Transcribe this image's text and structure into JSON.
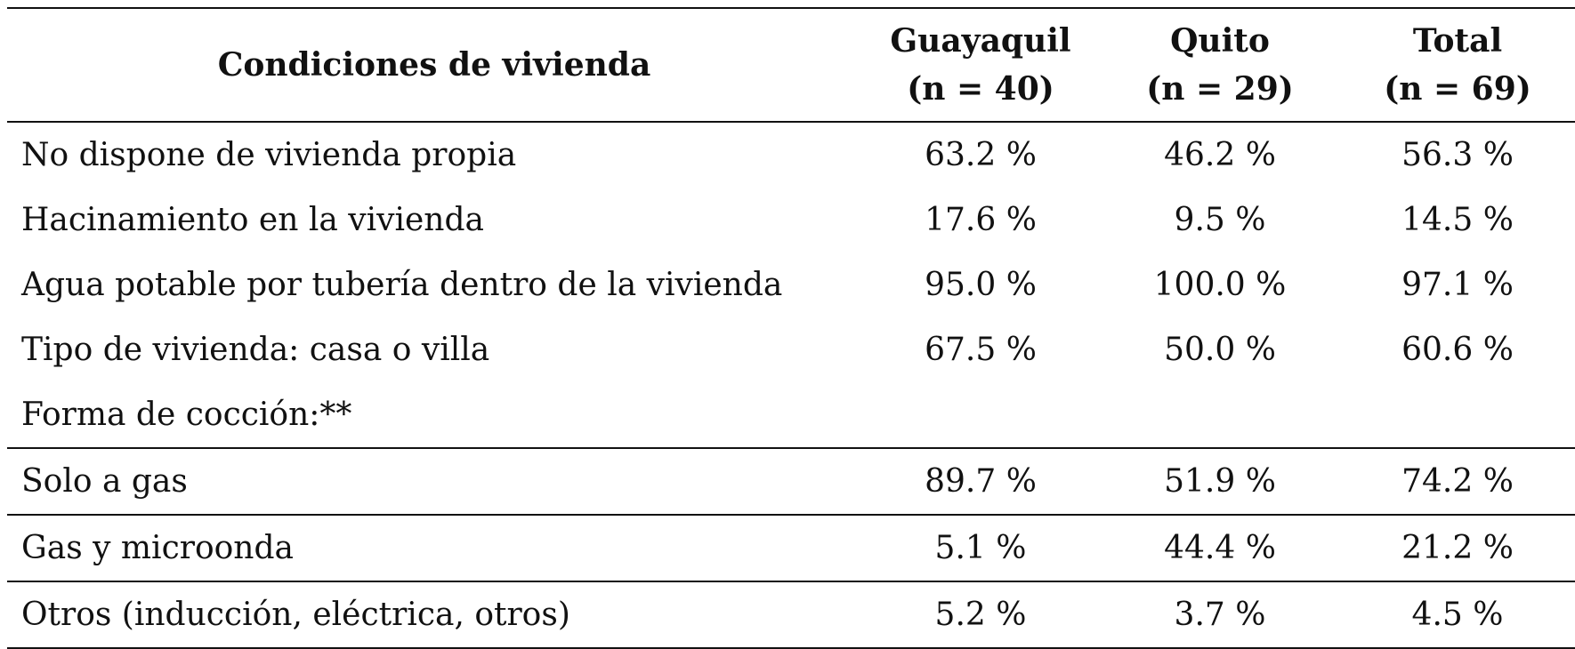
{
  "table": {
    "header": {
      "col1": "Condiciones de vivienda",
      "col2": {
        "line1": "Guayaquil",
        "line2": "(n = 40)"
      },
      "col3": {
        "line1": "Quito",
        "line2": "(n = 29)"
      },
      "col4": {
        "line1": "Total",
        "line2": "(n = 69)"
      }
    },
    "rows": [
      {
        "label": "No dispone de vivienda propia",
        "guayaquil": "63.2 %",
        "quito": "46.2 %",
        "total": "56.3 %"
      },
      {
        "label": "Hacinamiento en la vivienda",
        "guayaquil": "17.6 %",
        "quito": "9.5 %",
        "total": "14.5 %"
      },
      {
        "label": "Agua potable por tubería dentro de la vivienda",
        "guayaquil": "95.0 %",
        "quito": "100.0 %",
        "total": "97.1 %"
      },
      {
        "label": "Tipo de vivienda: casa o villa",
        "guayaquil": "67.5 %",
        "quito": "50.0 %",
        "total": "60.6 %"
      },
      {
        "label": "Forma de cocción:**",
        "guayaquil": "",
        "quito": "",
        "total": ""
      },
      {
        "label": "Solo a gas",
        "guayaquil": "89.7 %",
        "quito": "51.9 %",
        "total": "74.2 %"
      },
      {
        "label": "Gas y microonda",
        "guayaquil": "5.1 %",
        "quito": "44.4 %",
        "total": "21.2 %"
      },
      {
        "label": "Otros (inducción, eléctrica, otros)",
        "guayaquil": "5.2 %",
        "quito": "3.7 %",
        "total": "4.5 %"
      }
    ]
  }
}
